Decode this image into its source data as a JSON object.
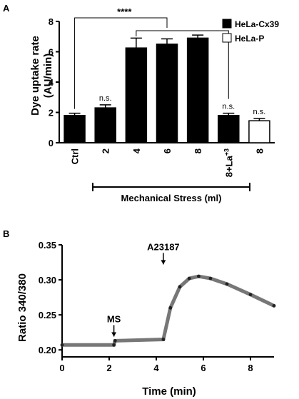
{
  "panel_labels": {
    "a": "A",
    "b": "B"
  },
  "chart_data": [
    {
      "type": "bar",
      "ylabel": "Dye uptake rate",
      "ylabel_unit": "(AU/min)",
      "ylim": [
        0,
        8
      ],
      "yticks": [
        "0",
        "2",
        "4",
        "6",
        "8"
      ],
      "legend_position": "top-right",
      "categories": [
        "Ctrl",
        "2",
        "4",
        "6",
        "8",
        "8+La",
        "8"
      ],
      "la_superscript": "+3",
      "series": [
        {
          "name": "HeLa-Cx39",
          "fill": "#000000",
          "values": [
            1.8,
            2.3,
            6.25,
            6.5,
            6.9,
            1.8,
            null
          ],
          "errors": [
            0.15,
            0.2,
            0.65,
            0.35,
            0.2,
            0.15,
            null
          ]
        },
        {
          "name": "HeLa-P",
          "fill": "#ffffff",
          "values": [
            null,
            null,
            null,
            null,
            null,
            null,
            1.45
          ],
          "errors": [
            null,
            null,
            null,
            null,
            null,
            null,
            0.15
          ]
        }
      ],
      "significance": {
        "label": "****",
        "ns_label": "n.s.",
        "ns_categories": [
          1,
          5,
          6
        ]
      },
      "group_label": "Mechanical Stress (ml)"
    },
    {
      "type": "scatter",
      "xlabel": "Time (min)",
      "ylabel": "Ratio 340/380",
      "xlim": [
        0,
        9
      ],
      "ylim": [
        0.19,
        0.35
      ],
      "xticks": [
        "0",
        "2",
        "4",
        "6",
        "8"
      ],
      "yticks": [
        "0.20",
        "0.25",
        "0.30",
        "0.35"
      ],
      "annotations": [
        {
          "label": "MS",
          "x": 2.2,
          "y": 0.215
        },
        {
          "label": "A23187",
          "x": 4.3,
          "y": 0.318
        }
      ],
      "series": [
        {
          "x": [
            0,
            2.2,
            2.25,
            4.3,
            4.6,
            5.0,
            5.4,
            5.8,
            6.3,
            7.0,
            8.0,
            9.0
          ],
          "y": [
            0.207,
            0.207,
            0.213,
            0.215,
            0.26,
            0.29,
            0.302,
            0.305,
            0.302,
            0.294,
            0.279,
            0.263
          ]
        }
      ]
    }
  ]
}
